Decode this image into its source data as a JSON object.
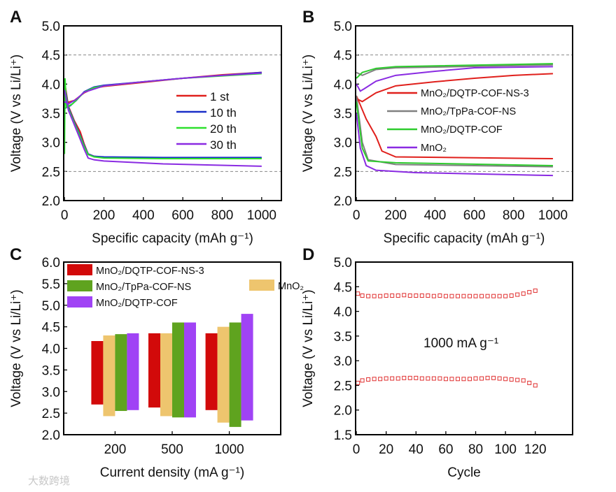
{
  "watermark": "大数跨境",
  "chart_data": [
    {
      "panel": "A",
      "type": "line",
      "xlabel": "Specific capacity (mAh g⁻¹)",
      "ylabel": "Voltage (V vs Li/Li⁺)",
      "xlim": [
        -4,
        1100
      ],
      "ylim": [
        2.0,
        5.0
      ],
      "xticks": [
        "0",
        "200",
        "400",
        "600",
        "800",
        "1000"
      ],
      "yticks": [
        "2.0",
        "2.5",
        "3.0",
        "3.5",
        "4.0",
        "4.5",
        "5.0"
      ],
      "reference_lines": [
        2.5,
        4.5
      ],
      "legend_position": "center-right",
      "series": [
        {
          "name": "1 st",
          "color": "#e0201c",
          "charge": [
            [
              0,
              3.7
            ],
            [
              20,
              3.69
            ],
            [
              50,
              3.72
            ],
            [
              100,
              3.85
            ],
            [
              150,
              3.93
            ],
            [
              200,
              3.96
            ],
            [
              400,
              4.03
            ],
            [
              600,
              4.1
            ],
            [
              800,
              4.16
            ],
            [
              1000,
              4.2
            ]
          ],
          "discharge": [
            [
              0,
              4.05
            ],
            [
              20,
              3.62
            ],
            [
              50,
              3.37
            ],
            [
              80,
              3.18
            ],
            [
              100,
              2.97
            ],
            [
              120,
              2.8
            ],
            [
              150,
              2.76
            ],
            [
              200,
              2.74
            ],
            [
              500,
              2.73
            ],
            [
              1000,
              2.73
            ]
          ]
        },
        {
          "name": "10 th",
          "color": "#1a2fc8",
          "charge": [
            [
              0,
              3.58
            ],
            [
              30,
              3.63
            ],
            [
              60,
              3.72
            ],
            [
              100,
              3.87
            ],
            [
              150,
              3.95
            ],
            [
              200,
              3.98
            ],
            [
              400,
              4.04
            ],
            [
              600,
              4.1
            ],
            [
              800,
              4.15
            ],
            [
              1000,
              4.2
            ]
          ],
          "discharge": [
            [
              0,
              4.0
            ],
            [
              20,
              3.6
            ],
            [
              50,
              3.35
            ],
            [
              80,
              3.12
            ],
            [
              100,
              2.95
            ],
            [
              120,
              2.8
            ],
            [
              150,
              2.76
            ],
            [
              200,
              2.75
            ],
            [
              500,
              2.74
            ],
            [
              1000,
              2.74
            ]
          ]
        },
        {
          "name": "20 th",
          "color": "#2ee02e",
          "charge": [
            [
              0,
              2.8
            ],
            [
              3,
              4.1
            ],
            [
              10,
              3.6
            ],
            [
              40,
              3.66
            ],
            [
              100,
              3.86
            ],
            [
              150,
              3.94
            ],
            [
              200,
              3.97
            ],
            [
              400,
              4.04
            ],
            [
              600,
              4.1
            ],
            [
              800,
              4.14
            ],
            [
              1000,
              4.18
            ]
          ],
          "discharge": [
            [
              0,
              3.95
            ],
            [
              20,
              3.58
            ],
            [
              50,
              3.33
            ],
            [
              80,
              3.1
            ],
            [
              100,
              2.93
            ],
            [
              120,
              2.79
            ],
            [
              150,
              2.75
            ],
            [
              200,
              2.73
            ],
            [
              500,
              2.72
            ],
            [
              1000,
              2.72
            ]
          ]
        },
        {
          "name": "30 th",
          "color": "#8a2be2",
          "charge": [
            [
              0,
              3.7
            ],
            [
              20,
              3.66
            ],
            [
              60,
              3.74
            ],
            [
              100,
              3.86
            ],
            [
              200,
              3.97
            ],
            [
              400,
              4.04
            ],
            [
              600,
              4.1
            ],
            [
              800,
              4.15
            ],
            [
              1000,
              4.19
            ]
          ],
          "discharge": [
            [
              0,
              3.9
            ],
            [
              20,
              3.55
            ],
            [
              50,
              3.3
            ],
            [
              80,
              3.05
            ],
            [
              100,
              2.88
            ],
            [
              120,
              2.73
            ],
            [
              150,
              2.7
            ],
            [
              200,
              2.68
            ],
            [
              500,
              2.63
            ],
            [
              1000,
              2.59
            ]
          ]
        }
      ]
    },
    {
      "panel": "B",
      "type": "line",
      "xlabel": "Specific capacity (mAh g⁻¹)",
      "ylabel": "Voltage (V vs Li/Li⁺)",
      "xlim": [
        -4,
        1100
      ],
      "ylim": [
        2.0,
        5.0
      ],
      "xticks": [
        "0",
        "200",
        "400",
        "600",
        "800",
        "1000"
      ],
      "yticks": [
        "2.0",
        "2.5",
        "3.0",
        "3.5",
        "4.0",
        "4.5",
        "5.0"
      ],
      "reference_lines": [
        2.5,
        4.5
      ],
      "legend_position": "center-right",
      "series": [
        {
          "name": "MnO₂/DQTP-COF-NS-3",
          "color": "#e0201c",
          "charge": [
            [
              0,
              3.75
            ],
            [
              30,
              3.7
            ],
            [
              100,
              3.85
            ],
            [
              200,
              3.97
            ],
            [
              400,
              4.04
            ],
            [
              600,
              4.1
            ],
            [
              800,
              4.15
            ],
            [
              1000,
              4.18
            ]
          ],
          "discharge": [
            [
              0,
              3.8
            ],
            [
              50,
              3.4
            ],
            [
              100,
              3.1
            ],
            [
              130,
              2.85
            ],
            [
              200,
              2.75
            ],
            [
              1000,
              2.72
            ]
          ]
        },
        {
          "name": "MnO₂/TpPa-COF-NS",
          "color": "#808080",
          "charge": [
            [
              0,
              4.2
            ],
            [
              30,
              4.15
            ],
            [
              100,
              4.25
            ],
            [
              200,
              4.28
            ],
            [
              1000,
              4.33
            ]
          ],
          "discharge": [
            [
              0,
              3.8
            ],
            [
              30,
              3.0
            ],
            [
              60,
              2.7
            ],
            [
              200,
              2.62
            ],
            [
              1000,
              2.58
            ]
          ]
        },
        {
          "name": "MnO₂/DQTP-COF",
          "color": "#2ecc2e",
          "charge": [
            [
              0,
              4.1
            ],
            [
              30,
              4.2
            ],
            [
              100,
              4.27
            ],
            [
              200,
              4.3
            ],
            [
              1000,
              4.35
            ]
          ],
          "discharge": [
            [
              0,
              3.7
            ],
            [
              30,
              2.9
            ],
            [
              60,
              2.68
            ],
            [
              200,
              2.65
            ],
            [
              1000,
              2.6
            ]
          ]
        },
        {
          "name": "MnO₂",
          "color": "#8a2be2",
          "charge": [
            [
              0,
              4.0
            ],
            [
              20,
              3.88
            ],
            [
              40,
              3.92
            ],
            [
              100,
              4.05
            ],
            [
              200,
              4.15
            ],
            [
              400,
              4.22
            ],
            [
              600,
              4.28
            ],
            [
              1000,
              4.3
            ]
          ],
          "discharge": [
            [
              0,
              3.5
            ],
            [
              20,
              2.9
            ],
            [
              50,
              2.6
            ],
            [
              100,
              2.52
            ],
            [
              300,
              2.48
            ],
            [
              1000,
              2.43
            ]
          ]
        }
      ]
    },
    {
      "panel": "C",
      "type": "bar",
      "xlabel": "Current density (mA g⁻¹)",
      "ylabel": "Voltage (V vs Li/Li⁺)",
      "categories": [
        "200",
        "500",
        "1000"
      ],
      "xlim": [
        0.1,
        3.9
      ],
      "ylim": [
        2.0,
        6.0
      ],
      "yticks": [
        "2.0",
        "2.5",
        "3.0",
        "3.5",
        "4.0",
        "4.5",
        "5.0",
        "5.5",
        "6.0"
      ],
      "legend_position": "top",
      "series": [
        {
          "name": "MnO₂/DQTP-COF-NS-3",
          "color": "#d20a0a",
          "ranges": [
            [
              2.7,
              4.17
            ],
            [
              2.63,
              4.35
            ],
            [
              2.57,
              4.35
            ]
          ]
        },
        {
          "name": "MnO₂",
          "color": "#eec56e",
          "ranges": [
            [
              2.43,
              4.3
            ],
            [
              2.43,
              4.35
            ],
            [
              2.28,
              4.5
            ]
          ]
        },
        {
          "name": "MnO₂/TpPa-COF-NS",
          "color": "#5fa31f",
          "ranges": [
            [
              2.55,
              4.33
            ],
            [
              2.4,
              4.6
            ],
            [
              2.18,
              4.6
            ]
          ]
        },
        {
          "name": "MnO₂/DQTP-COF",
          "color": "#a043f5",
          "ranges": [
            [
              2.57,
              4.35
            ],
            [
              2.4,
              4.6
            ],
            [
              2.33,
              4.8
            ]
          ]
        }
      ]
    },
    {
      "panel": "D",
      "type": "scatter",
      "xlabel": "Cycle",
      "ylabel": "Voltage (V vs Li/Li⁺)",
      "xlim": [
        -0.5,
        145
      ],
      "ylim": [
        1.5,
        5.0
      ],
      "xticks": [
        "0",
        "20",
        "40",
        "60",
        "80",
        "100",
        "120"
      ],
      "yticks": [
        "1.5",
        "2.0",
        "2.5",
        "3.0",
        "3.5",
        "4.0",
        "4.5",
        "5.0"
      ],
      "annotation": "1000 mA g⁻¹",
      "marker_color": "#e03030",
      "x": [
        1,
        4,
        8,
        12,
        16,
        20,
        24,
        28,
        32,
        36,
        40,
        44,
        48,
        52,
        56,
        60,
        64,
        68,
        72,
        76,
        80,
        84,
        88,
        92,
        96,
        100,
        104,
        108,
        112,
        116,
        120
      ],
      "charge": [
        4.36,
        4.32,
        4.31,
        4.31,
        4.31,
        4.32,
        4.32,
        4.32,
        4.33,
        4.32,
        4.32,
        4.32,
        4.32,
        4.31,
        4.32,
        4.31,
        4.31,
        4.31,
        4.31,
        4.31,
        4.31,
        4.31,
        4.31,
        4.31,
        4.31,
        4.31,
        4.32,
        4.34,
        4.36,
        4.39,
        4.42
      ],
      "discharge": [
        2.55,
        2.6,
        2.62,
        2.63,
        2.63,
        2.64,
        2.64,
        2.64,
        2.65,
        2.65,
        2.65,
        2.64,
        2.64,
        2.64,
        2.64,
        2.63,
        2.63,
        2.63,
        2.63,
        2.63,
        2.64,
        2.64,
        2.65,
        2.65,
        2.64,
        2.63,
        2.62,
        2.61,
        2.6,
        2.55,
        2.5
      ]
    }
  ]
}
